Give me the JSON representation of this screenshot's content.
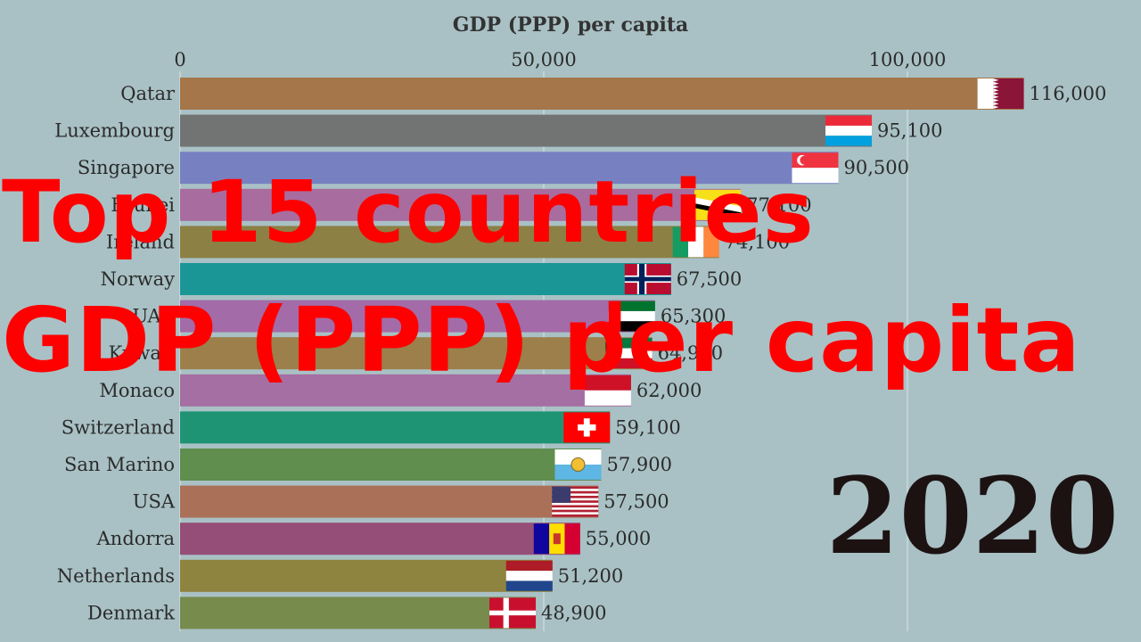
{
  "overlay": {
    "line1": "Top 15 countries",
    "line2": "GDP (PPP) per capita"
  },
  "chart_data": {
    "type": "bar",
    "orientation": "horizontal",
    "title": "GDP (PPP) per capita",
    "year": "2020",
    "xlim": [
      0,
      125000
    ],
    "ticks": [
      {
        "value": 0,
        "label": "0"
      },
      {
        "value": 50000,
        "label": "50,000"
      },
      {
        "value": 100000,
        "label": "100,000"
      }
    ],
    "grid": true,
    "categories": [
      "Qatar",
      "Luxembourg",
      "Singapore",
      "Brunei",
      "Ireland",
      "Norway",
      "UAE",
      "Kuwait",
      "Monaco",
      "Switzerland",
      "San Marino",
      "USA",
      "Andorra",
      "Netherlands",
      "Denmark"
    ],
    "values": [
      116000,
      95100,
      90500,
      77100,
      74100,
      67500,
      65300,
      64900,
      62000,
      59100,
      57900,
      57500,
      55000,
      51200,
      48900
    ],
    "value_labels": [
      "116,000",
      "95,100",
      "90,500",
      "77,100",
      "74,100",
      "67,500",
      "65,300",
      "64,900",
      "62,000",
      "59,100",
      "57,900",
      "57,500",
      "55,000",
      "51,200",
      "48,900"
    ],
    "bar_colors": [
      "#a47649",
      "#727474",
      "#7781c1",
      "#a86c9e",
      "#8c8045",
      "#1a9696",
      "#a36ba7",
      "#9c7f4b",
      "#a56fa3",
      "#1e9474",
      "#5f8e4e",
      "#ab7158",
      "#954e78",
      "#8f8340",
      "#768b4c"
    ],
    "flags": [
      "qatar-flag",
      "luxembourg-flag",
      "singapore-flag",
      "brunei-flag",
      "ireland-flag",
      "norway-flag",
      "uae-flag",
      "kuwait-flag",
      "monaco-flag",
      "switzerland-flag",
      "san-marino-flag",
      "usa-flag",
      "andorra-flag",
      "netherlands-flag",
      "denmark-flag"
    ]
  }
}
